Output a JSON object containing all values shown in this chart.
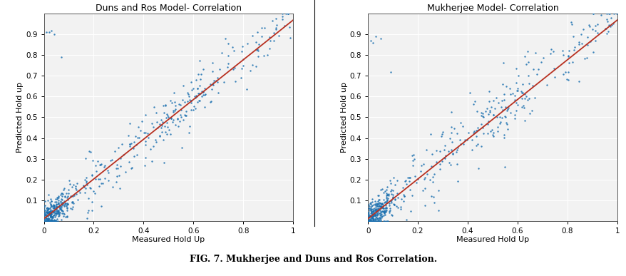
{
  "plot1_title": "Duns and Ros Model- Correlation",
  "plot2_title": "Mukherjee Model- Correlation",
  "xlabel": "Measured Hold Up",
  "ylabel": "Predicted Hold up",
  "xlim": [
    0,
    1
  ],
  "ylim": [
    0,
    1
  ],
  "xticks": [
    0,
    0.2,
    0.4,
    0.6,
    0.8,
    1
  ],
  "yticks": [
    0.1,
    0.2,
    0.3,
    0.4,
    0.5,
    0.6,
    0.7,
    0.8,
    0.9
  ],
  "dot_color": "#1a6faf",
  "line_color": "#b83020",
  "dot_size": 3,
  "title_fontsize": 9,
  "label_fontsize": 8,
  "tick_fontsize": 7.5,
  "caption": "FIG. 7. Mukherjee and Duns and Ros Correlation.",
  "caption_fontsize": 9,
  "bg_color": "#f2f2f2",
  "grid_color": "#ffffff",
  "n_points1": 600,
  "n_points2": 580,
  "seed1": 7,
  "seed2": 13
}
